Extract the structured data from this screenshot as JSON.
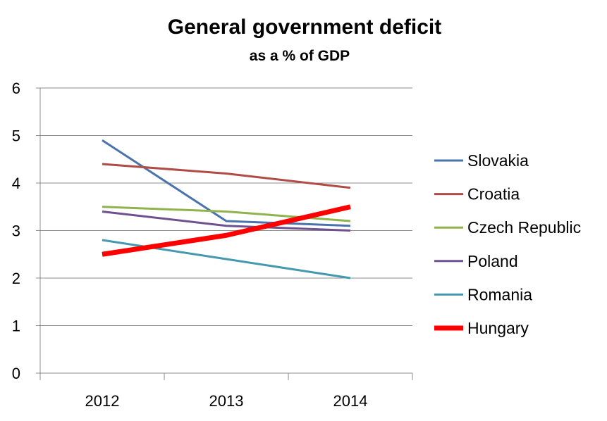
{
  "chart_data": {
    "type": "line",
    "title": "General government deficit",
    "subtitle": "as a % of GDP",
    "xlabel": "",
    "ylabel": "",
    "categories": [
      "2012",
      "2013",
      "2014"
    ],
    "ylim": [
      0,
      6
    ],
    "yticks": [
      0,
      1,
      2,
      3,
      4,
      5,
      6
    ],
    "grid": true,
    "legend_position": "right",
    "series": [
      {
        "name": "Slovakia",
        "values": [
          4.9,
          3.2,
          3.1
        ],
        "color": "#4A73AD",
        "emphasis": false
      },
      {
        "name": "Croatia",
        "values": [
          4.4,
          4.2,
          3.9
        ],
        "color": "#B04B46",
        "emphasis": false
      },
      {
        "name": "Czech Republic",
        "values": [
          3.5,
          3.4,
          3.2
        ],
        "color": "#8FB34D",
        "emphasis": false
      },
      {
        "name": "Poland",
        "values": [
          3.4,
          3.1,
          3.0
        ],
        "color": "#6F5090",
        "emphasis": false
      },
      {
        "name": "Romania",
        "values": [
          2.8,
          2.4,
          2.0
        ],
        "color": "#4498AF",
        "emphasis": false
      },
      {
        "name": "Hungary",
        "values": [
          2.5,
          2.9,
          3.5
        ],
        "color": "#FF0000",
        "emphasis": true
      }
    ]
  }
}
